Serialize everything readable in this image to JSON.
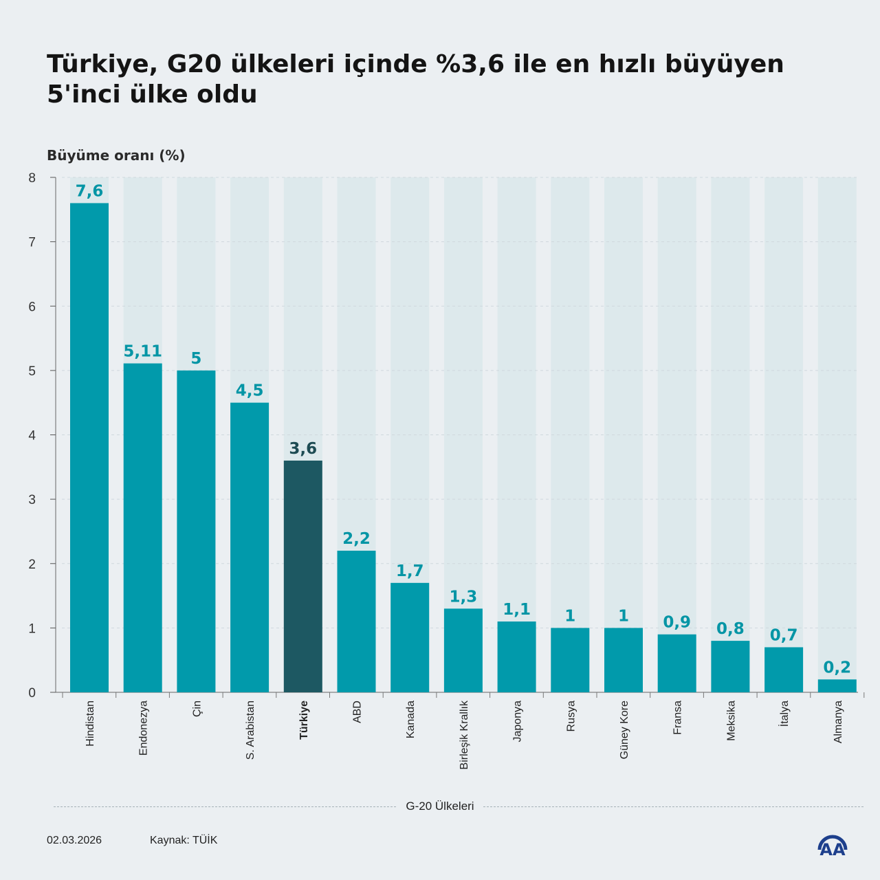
{
  "title_line1": "Türkiye, G20 ülkeleri içinde %3,6 ile en hızlı büyüyen",
  "title_line2": "5'inci ülke oldu",
  "date": "02.03.2026",
  "source": "Kaynak: TÜİK",
  "logo_text": "AA",
  "colors": {
    "bar": "#019aab",
    "highlight": "#1d5862",
    "band": "#dde9ec",
    "label": "#0495a5",
    "highlight_label": "#1d4b53"
  },
  "chart_data": {
    "type": "bar",
    "ylabel": "Büyüme oranı (%)",
    "xlabel": "G-20 Ülkeleri",
    "ylim": [
      0,
      8
    ],
    "yticks": [
      "0",
      "1",
      "2",
      "3",
      "4",
      "5",
      "6",
      "7",
      "8"
    ],
    "highlight": "Türkiye",
    "categories": [
      "Hindistan",
      "Endonezya",
      "Çin",
      "S. Arabistan",
      "Türkiye",
      "ABD",
      "Kanada",
      "Birleşik Krallık",
      "Japonya",
      "Rusya",
      "Güney Kore",
      "Fransa",
      "Meksika",
      "İtalya",
      "Almanya"
    ],
    "values": [
      7.6,
      5.11,
      5,
      4.5,
      3.6,
      2.2,
      1.7,
      1.3,
      1.1,
      1,
      1,
      0.9,
      0.8,
      0.7,
      0.2
    ],
    "value_labels": [
      "7,6",
      "5,11",
      "5",
      "4,5",
      "3,6",
      "2,2",
      "1,7",
      "1,3",
      "1,1",
      "1",
      "1",
      "0,9",
      "0,8",
      "0,7",
      "0,2"
    ]
  }
}
